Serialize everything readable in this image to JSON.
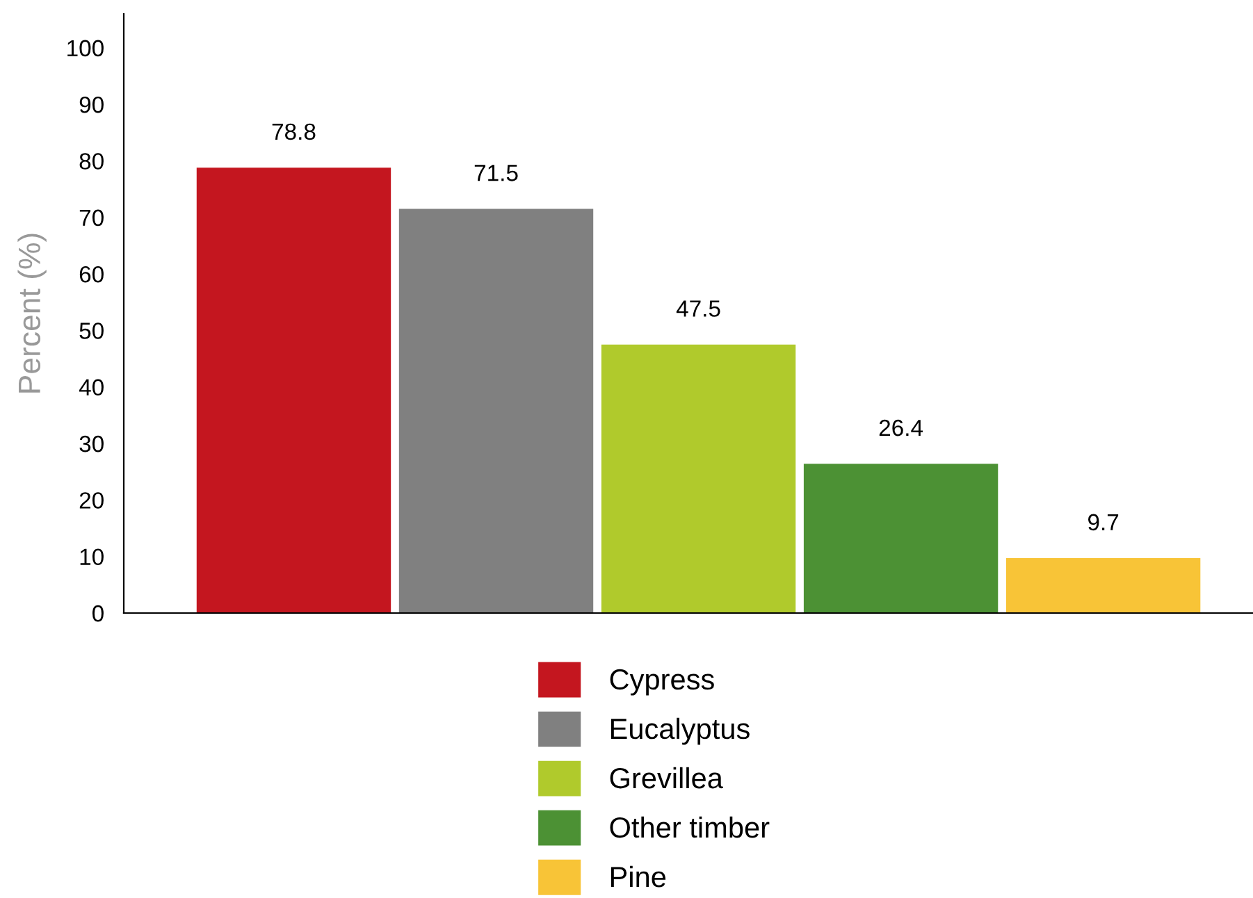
{
  "chart_data": {
    "type": "bar",
    "ylabel": "Percent (%)",
    "categories": [
      null
    ],
    "series": [
      {
        "name": "Cypress",
        "color": "#c4161f",
        "values": [
          78.8
        ]
      },
      {
        "name": "Eucalyptus",
        "color": "#808080",
        "values": [
          71.5
        ]
      },
      {
        "name": "Grevillea",
        "color": "#b0ca2c",
        "values": [
          47.5
        ]
      },
      {
        "name": "Other timber",
        "color": "#4c9134",
        "values": [
          26.4
        ]
      },
      {
        "name": "Pine",
        "color": "#f8c437",
        "values": [
          9.7
        ]
      }
    ],
    "ylim": [
      0,
      106
    ],
    "yticks": [
      0,
      10,
      20,
      30,
      40,
      50,
      60,
      70,
      80,
      90,
      100
    ],
    "data_labels": true,
    "legend": "bottom",
    "grid": false
  }
}
